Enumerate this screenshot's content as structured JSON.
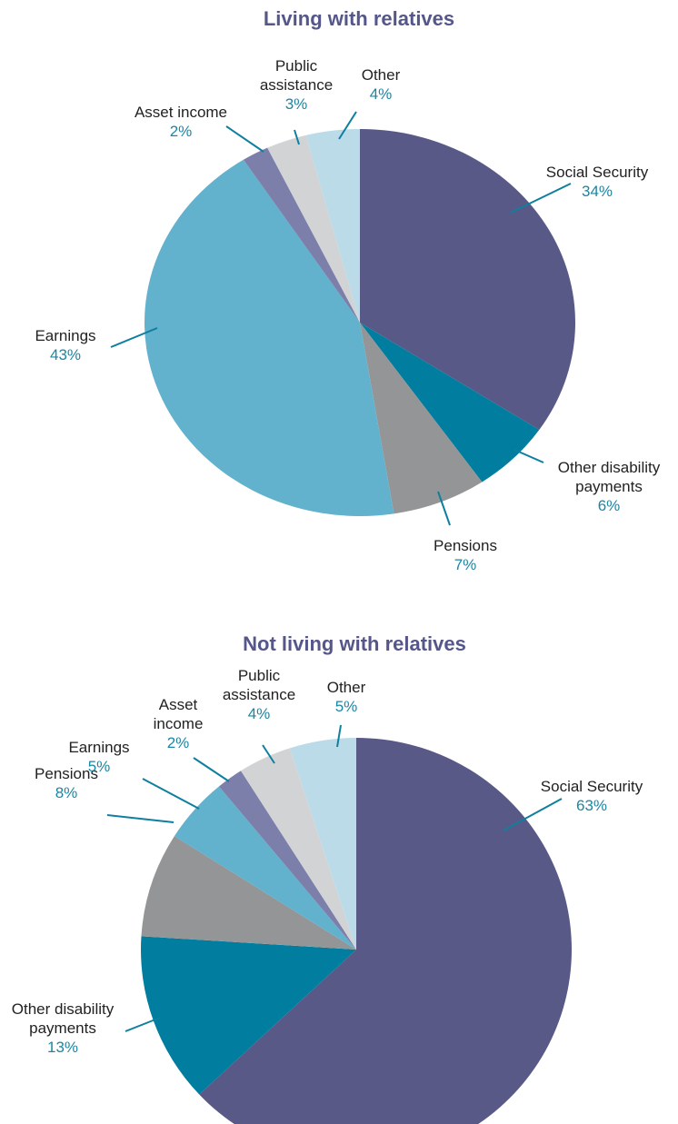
{
  "chart_data": [
    {
      "type": "pie",
      "title": "Living with relatives",
      "slices": [
        {
          "label": "Social Security",
          "pct_label": "34%",
          "value": 34,
          "color": "#585987"
        },
        {
          "label": "Other disability payments",
          "pct_label": "6%",
          "value": 6,
          "color": "#007d9f"
        },
        {
          "label": "Pensions",
          "pct_label": "7%",
          "value": 7,
          "color": "#939597"
        },
        {
          "label": "Earnings",
          "pct_label": "43%",
          "value": 43,
          "color": "#62b1cd"
        },
        {
          "label": "Asset income",
          "pct_label": "2%",
          "value": 2,
          "color": "#7d7fab"
        },
        {
          "label": "Public assistance",
          "pct_label": "3%",
          "value": 3,
          "color": "#d2d3d5"
        },
        {
          "label": "Other",
          "pct_label": "4%",
          "value": 4,
          "color": "#bcdbe8"
        }
      ]
    },
    {
      "type": "pie",
      "title": "Not living with relatives",
      "slices": [
        {
          "label": "Social Security",
          "pct_label": "63%",
          "value": 63,
          "color": "#585987"
        },
        {
          "label": "Other disability payments",
          "pct_label": "13%",
          "value": 13,
          "color": "#007d9f"
        },
        {
          "label": "Pensions",
          "pct_label": "8%",
          "value": 8,
          "color": "#939597"
        },
        {
          "label": "Earnings",
          "pct_label": "5%",
          "value": 5,
          "color": "#62b1cd"
        },
        {
          "label": "Asset income",
          "pct_label": "2%",
          "value": 2,
          "color": "#7d7fab"
        },
        {
          "label": "Public assistance",
          "pct_label": "4%",
          "value": 4,
          "color": "#d2d3d5"
        },
        {
          "label": "Other",
          "pct_label": "5%",
          "value": 5,
          "color": "#bcdbe8"
        }
      ]
    }
  ]
}
